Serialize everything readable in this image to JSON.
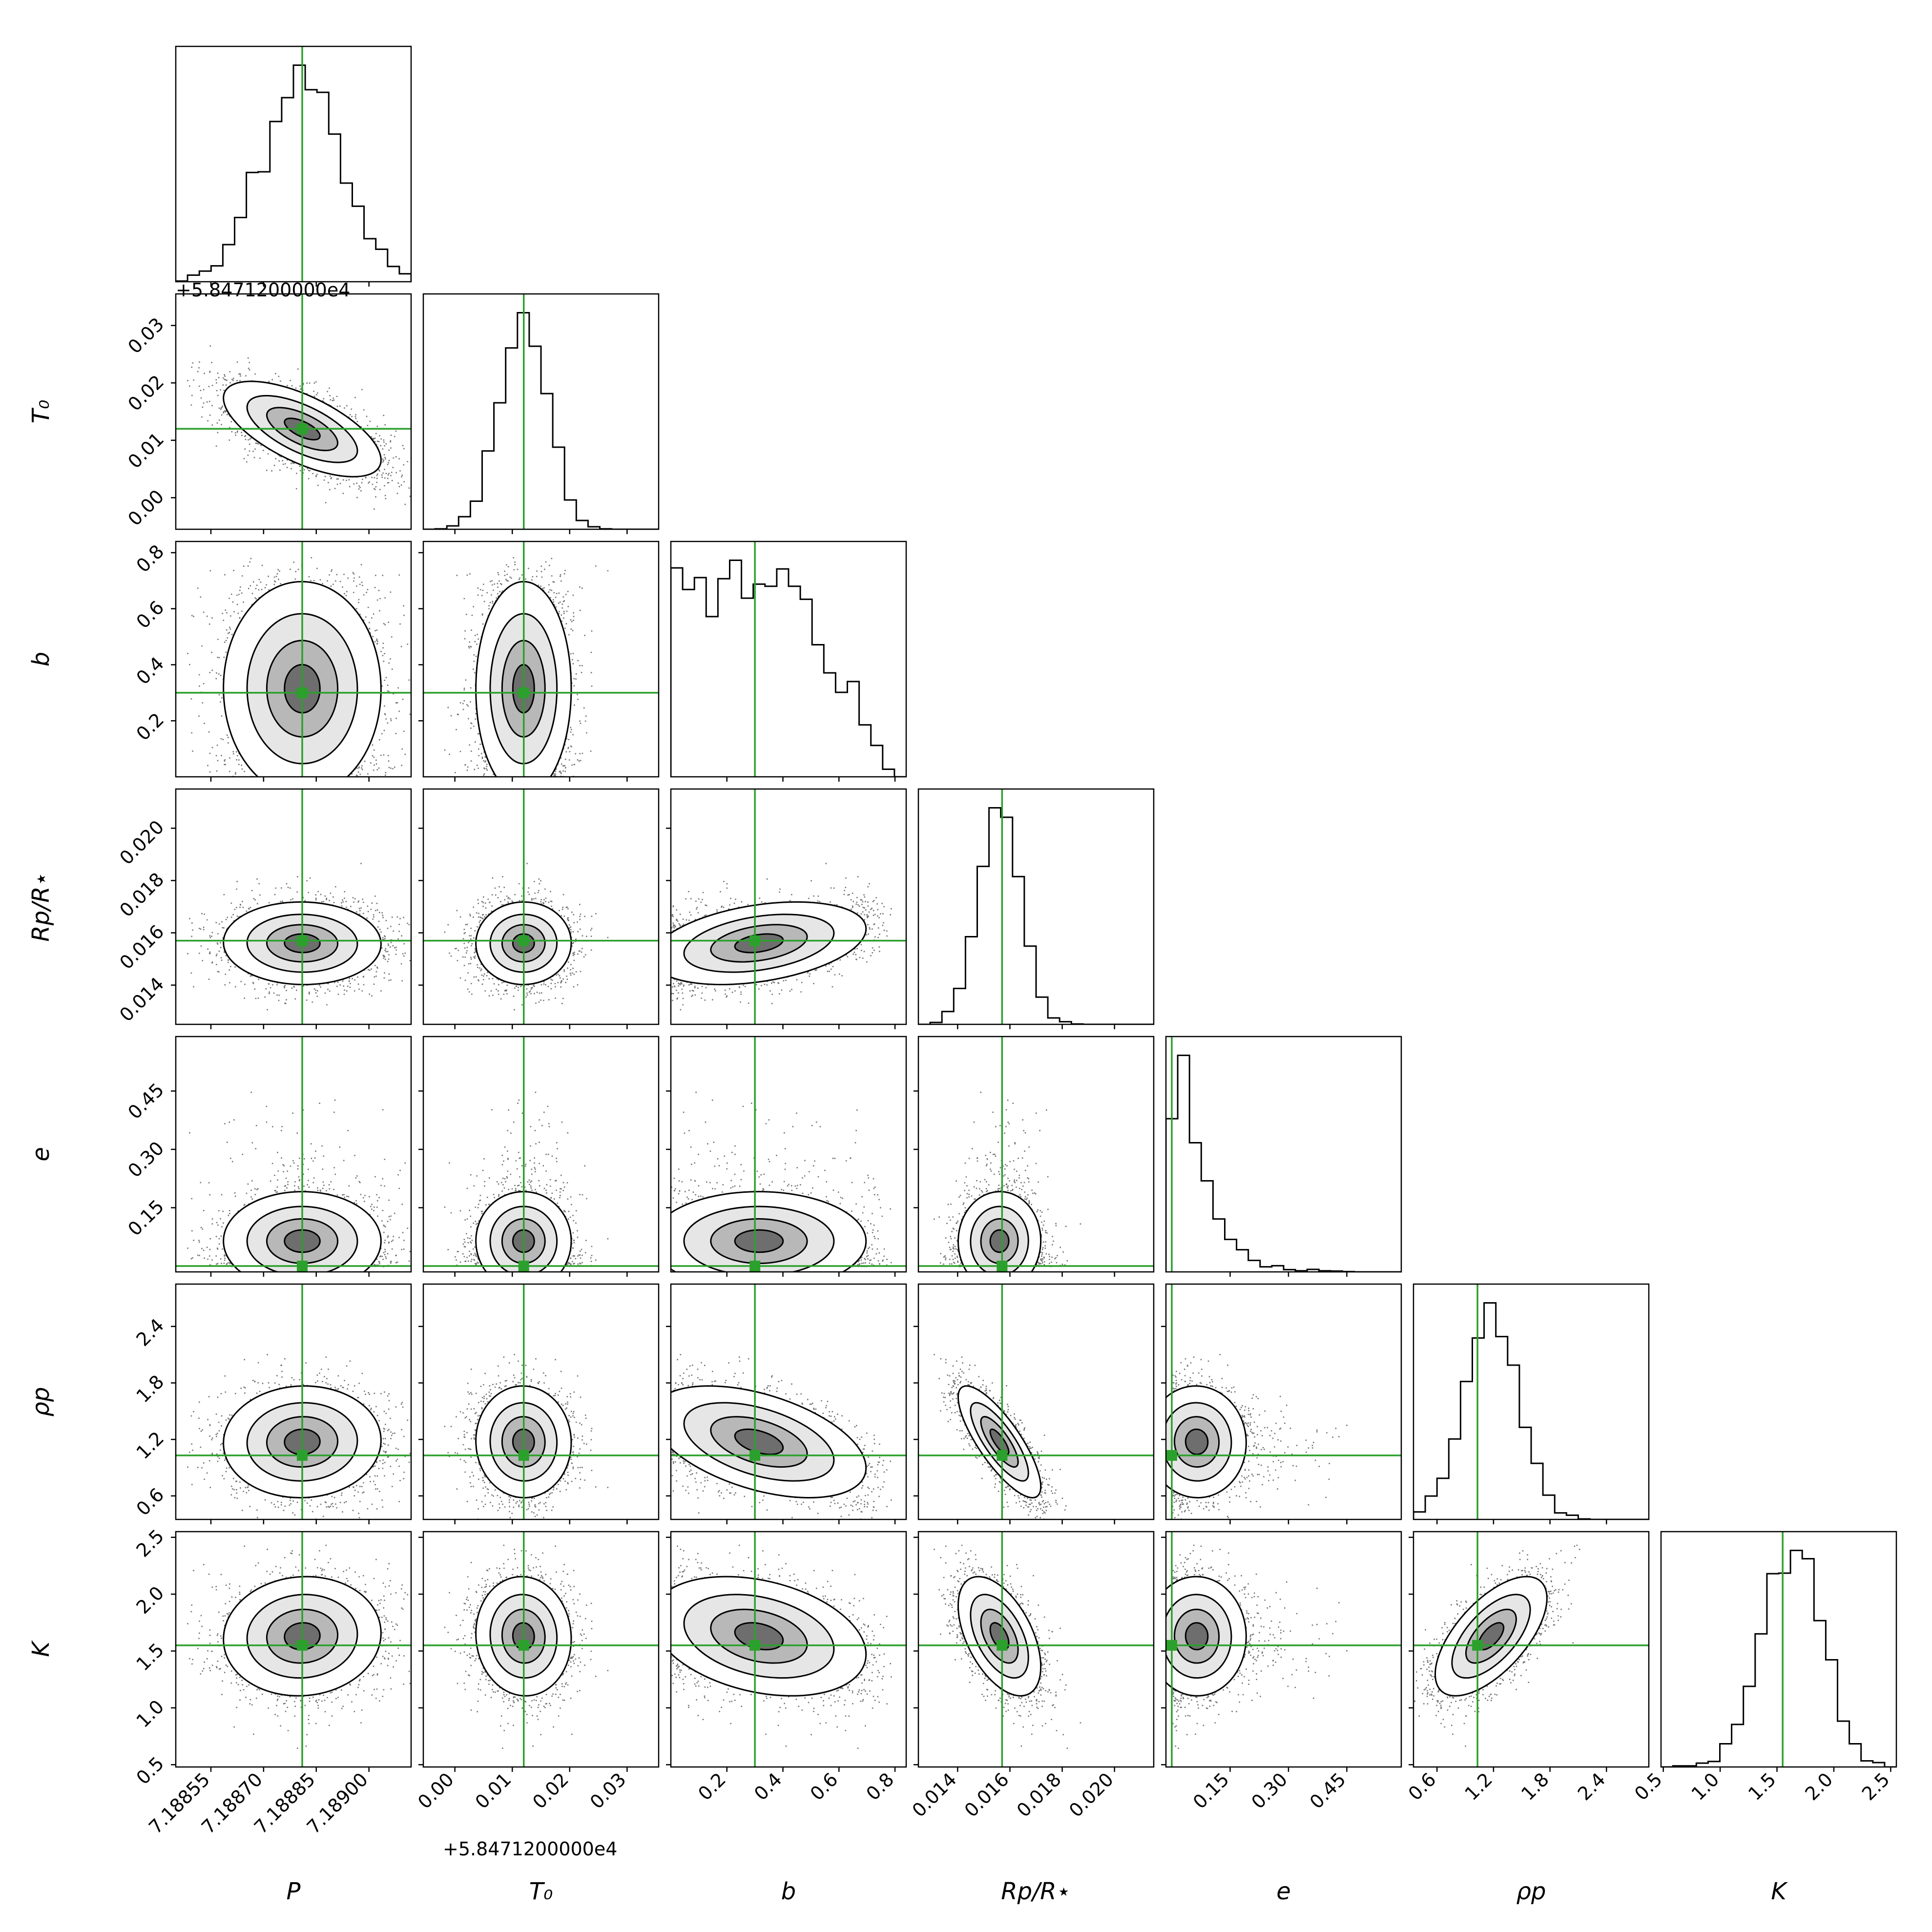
{
  "chart_data": {
    "type": "corner",
    "parameters": [
      {
        "key": "P",
        "label": "P",
        "range": [
          7.18845,
          7.18912
        ],
        "ticks": [
          7.18855,
          7.1887,
          7.18885,
          7.189
        ],
        "tick_labels": [
          "7.18855",
          "7.18870",
          "7.18885",
          "7.18900"
        ],
        "truth": 7.18881,
        "mode": "gauss",
        "sd": 0.00011,
        "offset_label": "+5.8471200000e4"
      },
      {
        "key": "T0",
        "label": "T₀",
        "range": [
          -0.0055,
          0.0355
        ],
        "ticks": [
          0.0,
          0.01,
          0.02,
          0.03
        ],
        "tick_labels": [
          "0.00",
          "0.01",
          "0.02",
          "0.03"
        ],
        "truth": 0.012,
        "mode": "gauss",
        "sd": 0.0042,
        "offset_label": "+5.8471200000e4"
      },
      {
        "key": "b",
        "label": "b",
        "range": [
          0.0,
          0.84
        ],
        "ticks": [
          0.2,
          0.4,
          0.6,
          0.8
        ],
        "tick_labels": [
          "0.2",
          "0.4",
          "0.6",
          "0.8"
        ],
        "truth": 0.3,
        "mode": "flat",
        "sd": 0.22
      },
      {
        "key": "Rp",
        "label": "Rp/R⋆",
        "range": [
          0.0125,
          0.0215
        ],
        "ticks": [
          0.014,
          0.016,
          0.018,
          0.02
        ],
        "tick_labels": [
          "0.014",
          "0.016",
          "0.018",
          "0.020"
        ],
        "truth": 0.0157,
        "mode": "gauss",
        "sd": 0.00085
      },
      {
        "key": "e",
        "label": "e",
        "range": [
          -0.015,
          0.59
        ],
        "ticks": [
          0.15,
          0.3,
          0.45
        ],
        "tick_labels": [
          "0.15",
          "0.30",
          "0.45"
        ],
        "truth": 0.0,
        "mode": "exp",
        "sd": 0.07
      },
      {
        "key": "rho",
        "label": "ρp",
        "range": [
          0.35,
          2.85
        ],
        "ticks": [
          0.6,
          1.2,
          1.8,
          2.4
        ],
        "tick_labels": [
          "0.6",
          "1.2",
          "1.8",
          "2.4"
        ],
        "truth": 1.03,
        "mode": "gauss",
        "sd": 0.22
      },
      {
        "key": "K",
        "label": "K",
        "range": [
          0.48,
          2.55
        ],
        "ticks": [
          0.5,
          1.0,
          1.5,
          2.0,
          2.5
        ],
        "tick_labels": [
          "0.5",
          "1.0",
          "1.5",
          "2.0",
          "2.5"
        ],
        "truth": 1.55,
        "mode": "gauss",
        "sd": 0.22
      }
    ],
    "truth_color": "#2ca02c",
    "correlations": {
      "P|T0": -0.65,
      "b|Rp": 0.6,
      "Rp|rho": -0.7,
      "rho|K": 0.55
    },
    "grid": false,
    "legend": "none"
  }
}
